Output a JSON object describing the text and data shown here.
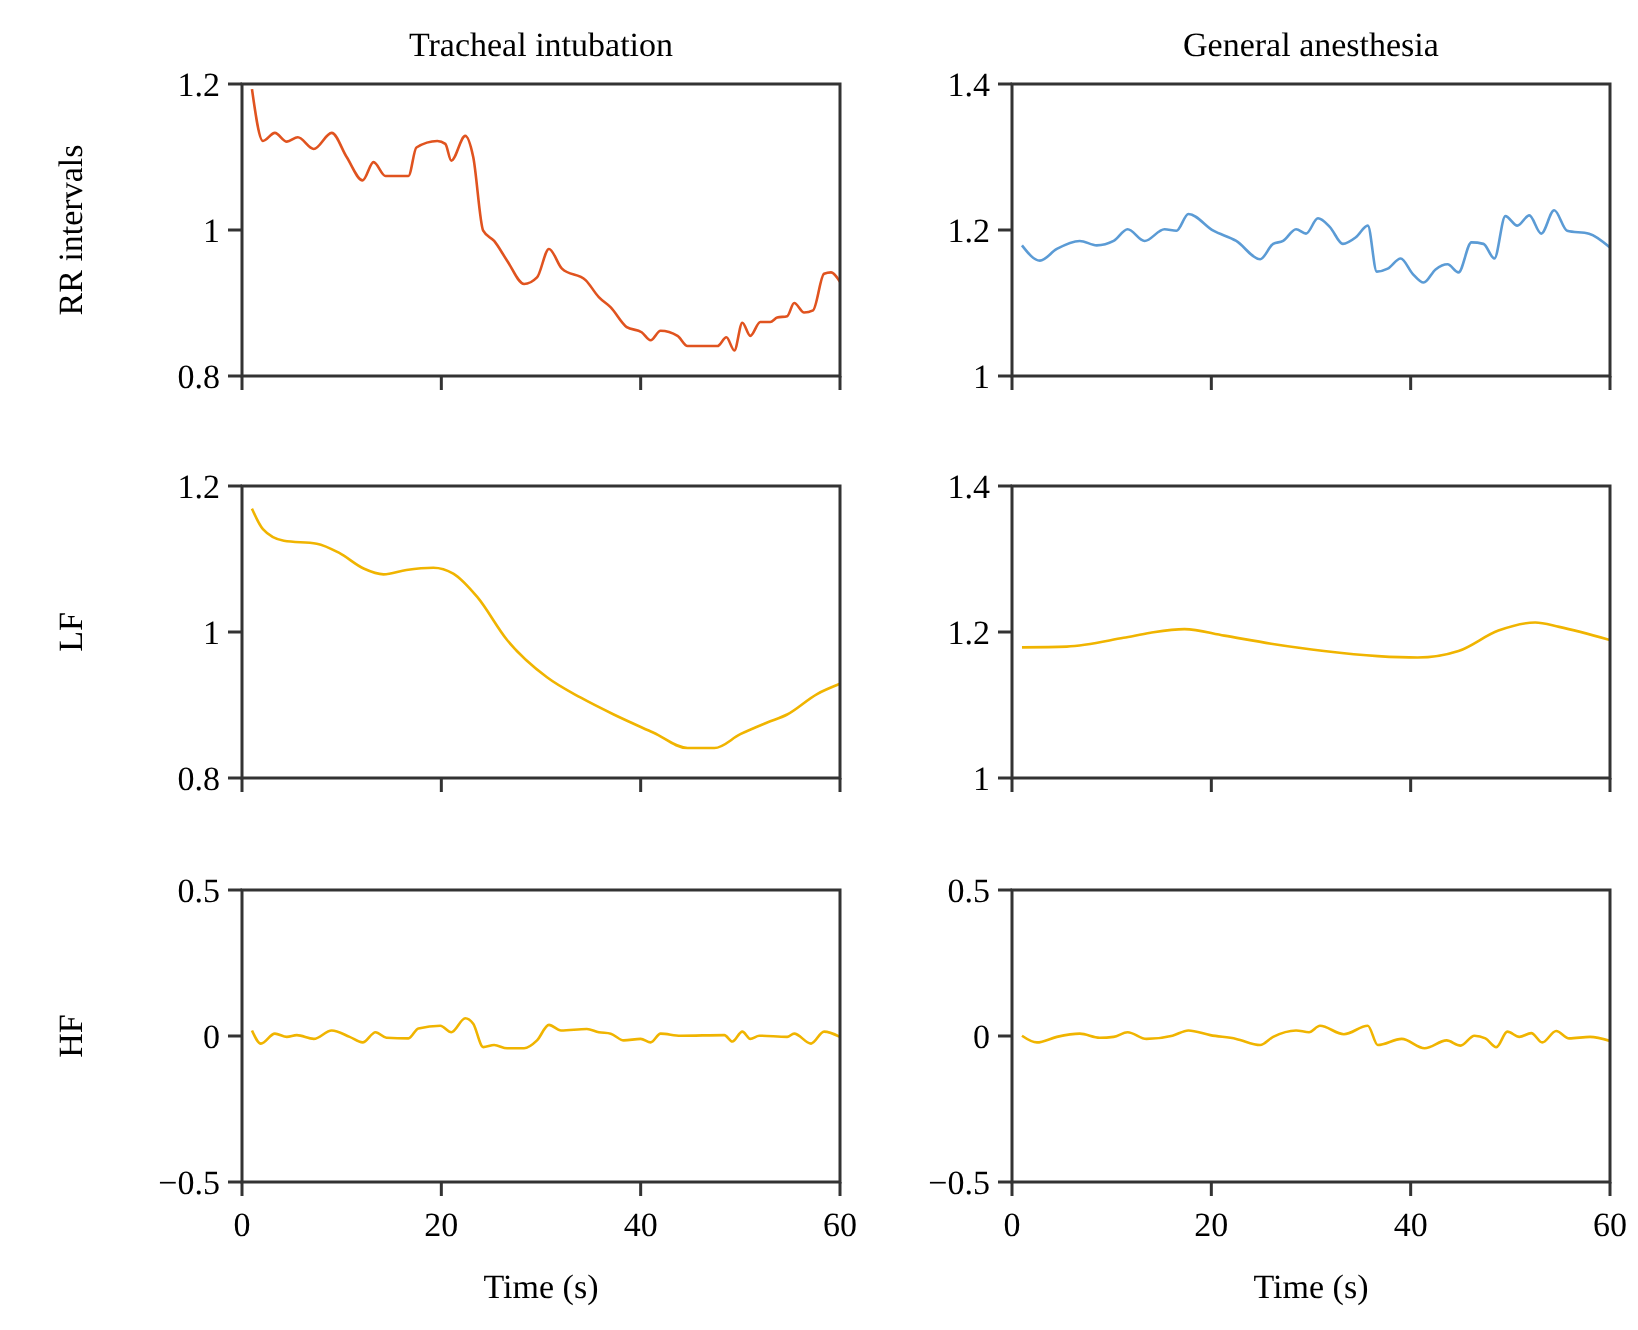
{
  "chart_data": [
    {
      "type": "line",
      "title": "Tracheal intubation",
      "ylabel": "RR intervals",
      "xlim": [
        0,
        60
      ],
      "xticks": [
        0,
        20,
        40,
        60
      ],
      "ylim": [
        0.8,
        1.2
      ],
      "yticks": [
        0.8,
        1,
        1.2
      ],
      "tick_labels": "y",
      "series": [
        {
          "color": "#e0531f",
          "x": [
            1,
            2.1,
            3.3,
            4.5,
            5.6,
            7.2,
            9,
            10.5,
            12.1,
            13.2,
            14.4,
            16.7,
            17.5,
            19.6,
            20.4,
            21,
            22.4,
            23.2,
            24.2,
            25.3,
            26.6,
            28.3,
            29.6,
            30.8,
            32.1,
            34.5,
            35.8,
            37,
            38.6,
            40.1,
            41,
            42,
            43.7,
            44.7,
            47.7,
            48.6,
            49.4,
            50.2,
            51,
            52,
            53,
            53.7,
            54.7,
            55.4,
            56.4,
            57.3,
            58.4,
            59.1,
            60
          ],
          "values": [
            1.193,
            1.122,
            1.133,
            1.121,
            1.127,
            1.111,
            1.133,
            1.1,
            1.068,
            1.093,
            1.074,
            1.074,
            1.113,
            1.122,
            1.118,
            1.095,
            1.129,
            1.1,
            0.999,
            0.985,
            0.958,
            0.926,
            0.935,
            0.974,
            0.947,
            0.931,
            0.908,
            0.894,
            0.867,
            0.86,
            0.849,
            0.862,
            0.855,
            0.841,
            0.841,
            0.853,
            0.835,
            0.873,
            0.855,
            0.874,
            0.874,
            0.88,
            0.882,
            0.9,
            0.887,
            0.89,
            0.94,
            0.942,
            0.929
          ]
        }
      ]
    },
    {
      "type": "line",
      "title": "General anesthesia",
      "xlim": [
        0,
        60
      ],
      "xticks": [
        0,
        20,
        40,
        60
      ],
      "ylim": [
        1,
        1.4
      ],
      "yticks": [
        1,
        1.2,
        1.4
      ],
      "tick_labels": "y",
      "series": [
        {
          "color": "#5b9bd5",
          "x": [
            1,
            2.8,
            4.5,
            6.8,
            8.5,
            10.2,
            11.6,
            13.3,
            15.3,
            16.5,
            17.7,
            20.2,
            22.5,
            24.9,
            26.2,
            27.2,
            28.5,
            29.5,
            30.7,
            31.9,
            33.2,
            34.5,
            35.7,
            36.6,
            37.7,
            39,
            40.2,
            41.3,
            42.5,
            43.7,
            44.8,
            46.1,
            47.3,
            48.4,
            49.5,
            50.7,
            51.9,
            53.1,
            54.4,
            55.7,
            57.9,
            60
          ],
          "values": [
            1.179,
            1.158,
            1.174,
            1.185,
            1.179,
            1.185,
            1.201,
            1.185,
            1.201,
            1.199,
            1.222,
            1.199,
            1.185,
            1.16,
            1.181,
            1.185,
            1.201,
            1.195,
            1.216,
            1.204,
            1.181,
            1.19,
            1.206,
            1.143,
            1.147,
            1.161,
            1.14,
            1.128,
            1.146,
            1.153,
            1.142,
            1.183,
            1.181,
            1.161,
            1.219,
            1.206,
            1.22,
            1.195,
            1.227,
            1.199,
            1.195,
            1.176
          ]
        }
      ]
    },
    {
      "type": "line",
      "ylabel": "LF",
      "xlim": [
        0,
        60
      ],
      "xticks": [
        0,
        20,
        40,
        60
      ],
      "ylim": [
        0.8,
        1.2
      ],
      "yticks": [
        0.8,
        1,
        1.2
      ],
      "tick_labels": "y",
      "series": [
        {
          "color": "#f0b400",
          "x": [
            1,
            2.1,
            4.2,
            7.5,
            9.8,
            12.2,
            14.2,
            16.5,
            19.2,
            21.2,
            23.6,
            26.6,
            30.6,
            34,
            37.3,
            41.3,
            44.7,
            47.4,
            50,
            52.7,
            54.7,
            57.7,
            60
          ],
          "values": [
            1.169,
            1.141,
            1.125,
            1.121,
            1.108,
            1.087,
            1.079,
            1.085,
            1.088,
            1.08,
            1.048,
            0.989,
            0.938,
            0.91,
            0.887,
            0.862,
            0.841,
            0.841,
            0.86,
            0.876,
            0.887,
            0.915,
            0.929
          ]
        }
      ]
    },
    {
      "type": "line",
      "xlim": [
        0,
        60
      ],
      "xticks": [
        0,
        20,
        40,
        60
      ],
      "ylim": [
        1,
        1.4
      ],
      "yticks": [
        1,
        1.2,
        1.4
      ],
      "tick_labels": "y",
      "series": [
        {
          "color": "#f0b400",
          "x": [
            1,
            5.5,
            11.2,
            13.9,
            17.3,
            21.3,
            26,
            31.3,
            36.7,
            40.7,
            44.8,
            48.8,
            52.5,
            54.9,
            60
          ],
          "values": [
            1.179,
            1.18,
            1.192,
            1.199,
            1.204,
            1.195,
            1.184,
            1.174,
            1.167,
            1.165,
            1.174,
            1.202,
            1.213,
            1.207,
            1.189
          ]
        }
      ]
    },
    {
      "type": "line",
      "ylabel": "HF",
      "xlabel": "Time (s)",
      "xlim": [
        0,
        60
      ],
      "xticks": [
        0,
        20,
        40,
        60
      ],
      "ylim": [
        -0.5,
        0.5
      ],
      "yticks": [
        {
          "value": -0.5,
          "label": "−0.5"
        },
        0,
        0.5
      ],
      "series": [
        {
          "color": "#f0b400",
          "x": [
            1,
            1.9,
            3.3,
            4.5,
            5.5,
            7.2,
            9,
            10.8,
            12.1,
            13.4,
            14.5,
            16.7,
            17.7,
            19.9,
            21,
            22.4,
            23.2,
            24.2,
            25.3,
            26.6,
            28.3,
            29.6,
            30.8,
            32,
            34.6,
            35.8,
            37,
            38.3,
            40,
            41,
            42,
            44,
            48.4,
            49.2,
            50.2,
            51,
            51.9,
            54.7,
            55.4,
            57.1,
            58.4,
            60
          ],
          "values": [
            0.019,
            -0.026,
            0.008,
            -0.003,
            0.003,
            -0.01,
            0.019,
            -0.003,
            -0.022,
            0.013,
            -0.006,
            -0.008,
            0.026,
            0.035,
            0.013,
            0.061,
            0.042,
            -0.038,
            -0.031,
            -0.042,
            -0.042,
            -0.015,
            0.038,
            0.019,
            0.024,
            0.013,
            0.008,
            -0.015,
            -0.01,
            -0.022,
            0.008,
            0.001,
            0.003,
            -0.019,
            0.015,
            -0.01,
            0.001,
            -0.003,
            0.008,
            -0.026,
            0.015,
            -0.003
          ]
        }
      ]
    },
    {
      "type": "line",
      "xlabel": "Time (s)",
      "xlim": [
        0,
        60
      ],
      "xticks": [
        0,
        20,
        40,
        60
      ],
      "ylim": [
        -0.5,
        0.5
      ],
      "yticks": [
        {
          "value": -0.5,
          "label": "−0.5"
        },
        0,
        0.5
      ],
      "series": [
        {
          "color": "#f0b400",
          "x": [
            1,
            2.5,
            4.5,
            6.8,
            8.8,
            10.2,
            11.6,
            13.5,
            16.1,
            17.7,
            19.9,
            22.5,
            24.9,
            26.2,
            28.5,
            29.8,
            30.9,
            33.3,
            35.7,
            36.7,
            39.1,
            41.4,
            43.6,
            45,
            46.4,
            47.5,
            48.6,
            49.7,
            50.9,
            52.1,
            53.2,
            54.6,
            55.9,
            58,
            60
          ],
          "values": [
            0.001,
            -0.022,
            -0.003,
            0.008,
            -0.006,
            -0.003,
            0.013,
            -0.01,
            0.001,
            0.019,
            0.003,
            -0.01,
            -0.031,
            -0.003,
            0.019,
            0.013,
            0.035,
            0.006,
            0.035,
            -0.031,
            -0.01,
            -0.042,
            -0.015,
            -0.033,
            0.001,
            -0.008,
            -0.038,
            0.015,
            -0.003,
            0.01,
            -0.022,
            0.017,
            -0.008,
            -0.003,
            -0.017
          ]
        }
      ]
    }
  ]
}
